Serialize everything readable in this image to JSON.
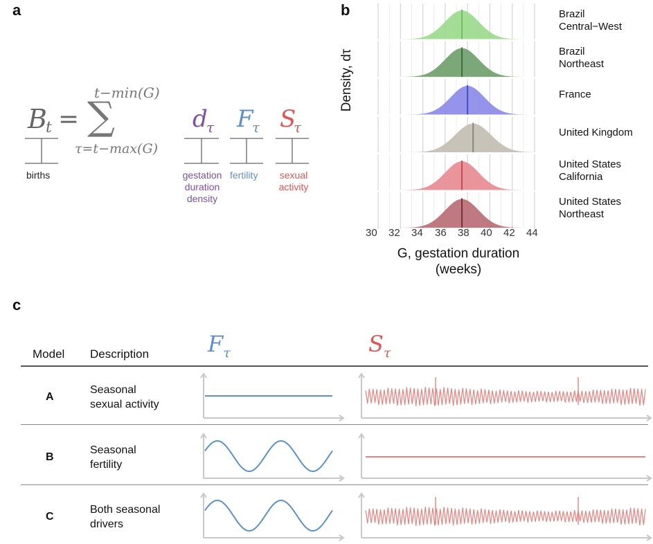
{
  "panel_a": {
    "label": "a",
    "equation": {
      "lhs_base": "B",
      "lhs_sub": "t",
      "equals": "=",
      "sum_symbol": "∑",
      "sum_upper": "t−min(G)",
      "sum_lower": "τ=t−max(G)",
      "term_d_base": "d",
      "term_d_sub": "τ",
      "term_f_base": "F",
      "term_f_sub": "τ",
      "term_s_base": "S",
      "term_s_sub": "τ"
    },
    "annotations": {
      "births": "births",
      "gestation_line1": "gestation",
      "gestation_line2": "duration",
      "gestation_line3": "density",
      "fertility": "fertility",
      "sexual_line1": "sexual",
      "sexual_line2": "activity"
    },
    "colors": {
      "gestation": "#7b4fa8",
      "fertility": "#5b8fd0",
      "sexual": "#e05555",
      "equation": "#666666"
    }
  },
  "panel_b": {
    "label": "b",
    "ylabel": "Density, dτ",
    "xlabel_line1": "G, gestation duration",
    "xlabel_line2": "(weeks)",
    "chart_data": {
      "type": "area",
      "x_ticks": [
        "30",
        "32",
        "34",
        "36",
        "38",
        "40",
        "42",
        "44"
      ],
      "xlim": [
        29.5,
        44.5
      ],
      "grid": true,
      "series": [
        {
          "name_line1": "Brazil",
          "name_line2": "Central−West",
          "mean": 37.5,
          "sd": 1.5,
          "color": "#9ad98a",
          "line": "#6fbf62"
        },
        {
          "name_line1": "Brazil",
          "name_line2": "Northeast",
          "mean": 37.5,
          "sd": 1.5,
          "color": "#6e9f6a",
          "line": "#3f6e3c"
        },
        {
          "name_line1": "France",
          "name_line2": "",
          "mean": 38.0,
          "sd": 1.5,
          "color": "#8a88e8",
          "line": "#4a48c8"
        },
        {
          "name_line1": "United Kingdom",
          "name_line2": "",
          "mean": 38.5,
          "sd": 1.6,
          "color": "#c2bcb0",
          "line": "#8c8678"
        },
        {
          "name_line1": "United States",
          "name_line2": "California",
          "mean": 37.5,
          "sd": 1.5,
          "color": "#e88a90",
          "line": "#c04a55"
        },
        {
          "name_line1": "United States",
          "name_line2": "Northeast",
          "mean": 37.5,
          "sd": 1.5,
          "color": "#b86a72",
          "line": "#7a3039"
        }
      ]
    }
  },
  "panel_c": {
    "label": "c",
    "header": {
      "model": "Model",
      "description": "Description",
      "f_base": "F",
      "f_sub": "τ",
      "s_base": "S",
      "s_sub": "τ"
    },
    "rows": [
      {
        "model": "A",
        "desc_line1": "Seasonal",
        "desc_line2": "sexual activity",
        "f_shape": "constant",
        "s_shape": "seasonal"
      },
      {
        "model": "B",
        "desc_line1": "Seasonal",
        "desc_line2": "fertility",
        "f_shape": "sine",
        "s_shape": "constant"
      },
      {
        "model": "C",
        "desc_line1": "Both seasonal",
        "desc_line2": "drivers",
        "f_shape": "sine",
        "s_shape": "seasonal"
      }
    ],
    "colors": {
      "f": "#5b8fd0",
      "s": "#e8827e",
      "axis": "#c8c8c8"
    }
  }
}
